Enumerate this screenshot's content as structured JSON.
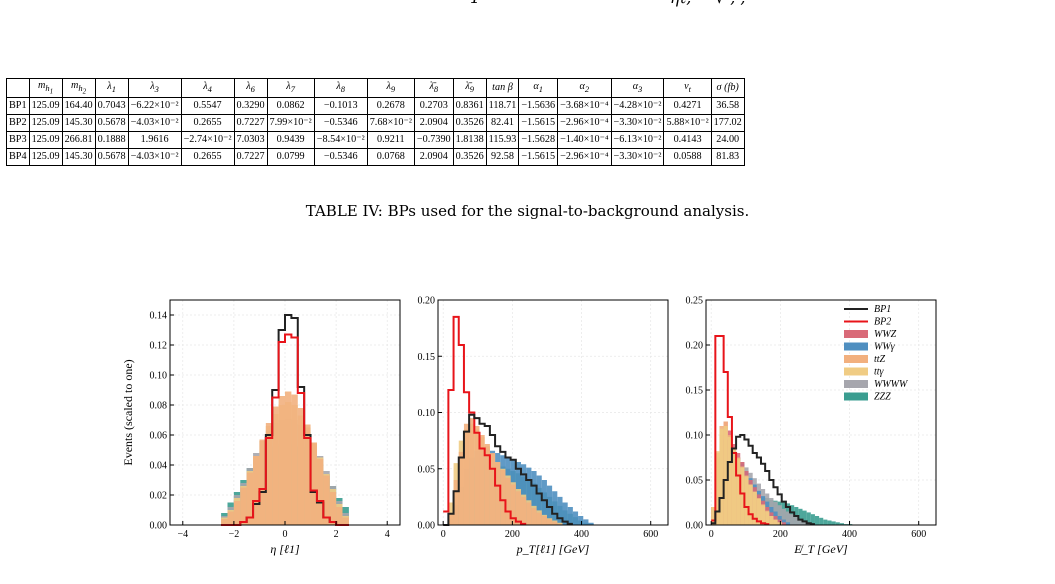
{
  "top_fragment": {
    "left": "1",
    "right": "ηℓ,  = √ , ,"
  },
  "table": {
    "headers": [
      "",
      "m_h1",
      "m_h2",
      "λ1",
      "λ3",
      "λ4",
      "λ6",
      "λ7",
      "λ8",
      "λ9",
      "λ̄8",
      "λ̄9",
      "tan β",
      "α1",
      "α2",
      "α3",
      "v_t",
      "σ (fb)"
    ],
    "header_display": [
      "",
      "m<sub>h<sub>1</sub></sub>",
      "m<sub>h<sub>2</sub></sub>",
      "λ<sub>1</sub>",
      "λ<sub>3</sub>",
      "λ<sub>4</sub>",
      "λ<sub>6</sub>",
      "λ<sub>7</sub>",
      "λ<sub>8</sub>",
      "λ<sub>9</sub>",
      "λ̄<sub>8</sub>",
      "λ̄<sub>9</sub>",
      "tan β",
      "α<sub>1</sub>",
      "α<sub>2</sub>",
      "α<sub>3</sub>",
      "v<sub>t</sub>",
      "σ (fb)"
    ],
    "rows": [
      [
        "BP1",
        "125.09",
        "164.40",
        "0.7043",
        "−6.22×10⁻²",
        "0.5547",
        "0.3290",
        "0.0862",
        "−0.1013",
        "0.2678",
        "0.2703",
        "0.8361",
        "118.71",
        "−1.5636",
        "−3.68×10⁻⁴",
        "−4.28×10⁻²",
        "0.4271",
        "36.58"
      ],
      [
        "BP2",
        "125.09",
        "145.30",
        "0.5678",
        "−4.03×10⁻²",
        "0.2655",
        "0.7227",
        "7.99×10⁻²",
        "−0.5346",
        "7.68×10⁻²",
        "2.0904",
        "0.3526",
        "82.41",
        "−1.5615",
        "−2.96×10⁻⁴",
        "−3.30×10⁻²",
        "5.88×10⁻²",
        "177.02"
      ],
      [
        "BP3",
        "125.09",
        "266.81",
        "0.1888",
        "1.9616",
        "−2.74×10⁻²",
        "7.0303",
        "0.9439",
        "−8.54×10⁻²",
        "0.9211",
        "−0.7390",
        "1.8138",
        "115.93",
        "−1.5628",
        "−1.40×10⁻⁴",
        "−6.13×10⁻²",
        "0.4143",
        "24.00"
      ],
      [
        "BP4",
        "125.09",
        "145.30",
        "0.5678",
        "−4.03×10⁻²",
        "0.2655",
        "0.7227",
        "0.0799",
        "−0.5346",
        "0.0768",
        "2.0904",
        "0.3526",
        "92.58",
        "−1.5615",
        "−2.96×10⁻⁴",
        "−3.30×10⁻²",
        "0.0588",
        "81.83"
      ]
    ]
  },
  "caption": "TABLE IV: BPs used for the signal-to-background analysis.",
  "colors": {
    "BP1": "#222222",
    "BP2": "#e8141a",
    "WWZ": "#d96a78",
    "WWgamma": "#4f8fc0",
    "ttZ": "#f2b07e",
    "ttgamma": "#f0cc84",
    "WWWW": "#a6a6ad",
    "ZZZ": "#3a9d90"
  },
  "chart_data": [
    {
      "type": "bar",
      "xlabel": "η [ℓ1]",
      "ylabel": "Events (scaled to one)",
      "xlim": [
        -4.5,
        4.5
      ],
      "ylim": [
        0,
        0.15
      ],
      "xticks": [
        "−4",
        "−2",
        "0",
        "2",
        "4"
      ],
      "yticks": [
        "0.00",
        "0.02",
        "0.04",
        "0.06",
        "0.08",
        "0.10",
        "0.12",
        "0.14"
      ],
      "bin_edges": [
        -2.5,
        -2.25,
        -2.0,
        -1.75,
        -1.5,
        -1.25,
        -1.0,
        -0.75,
        -0.5,
        -0.25,
        0,
        0.25,
        0.5,
        0.75,
        1.0,
        1.25,
        1.5,
        1.75,
        2.0,
        2.25,
        2.5
      ],
      "series": [
        {
          "name": "BP1",
          "values": [
            0,
            0,
            0,
            0.002,
            0.005,
            0.014,
            0.022,
            0.06,
            0.09,
            0.13,
            0.14,
            0.138,
            0.092,
            0.06,
            0.022,
            0.015,
            0.005,
            0.002,
            0,
            0
          ]
        },
        {
          "name": "BP2",
          "values": [
            0,
            0,
            0,
            0.002,
            0.005,
            0.016,
            0.024,
            0.058,
            0.085,
            0.122,
            0.127,
            0.125,
            0.088,
            0.058,
            0.023,
            0.016,
            0.005,
            0.002,
            0,
            0
          ]
        },
        {
          "name": "ZZZ",
          "values": [
            0.008,
            0.015,
            0.022,
            0.03,
            0.038,
            0.044,
            0.049,
            0.052,
            0.053,
            0.054,
            0.054,
            0.053,
            0.052,
            0.05,
            0.046,
            0.04,
            0.034,
            0.026,
            0.018,
            0.012
          ]
        },
        {
          "name": "WWWW",
          "values": [
            0.006,
            0.012,
            0.02,
            0.028,
            0.038,
            0.048,
            0.056,
            0.063,
            0.068,
            0.07,
            0.071,
            0.07,
            0.067,
            0.062,
            0.054,
            0.046,
            0.036,
            0.026,
            0.016,
            0.008
          ]
        },
        {
          "name": "ttgamma",
          "values": [
            0.005,
            0.01,
            0.018,
            0.026,
            0.036,
            0.046,
            0.056,
            0.066,
            0.074,
            0.08,
            0.082,
            0.08,
            0.073,
            0.065,
            0.055,
            0.045,
            0.034,
            0.024,
            0.014,
            0.006
          ]
        },
        {
          "name": "ttZ",
          "values": [
            0.004,
            0.009,
            0.016,
            0.025,
            0.035,
            0.046,
            0.057,
            0.068,
            0.079,
            0.086,
            0.089,
            0.087,
            0.078,
            0.067,
            0.055,
            0.044,
            0.033,
            0.022,
            0.012,
            0.005
          ]
        }
      ]
    },
    {
      "type": "bar",
      "xlabel": "p_T[ℓ1] [GeV]",
      "xlim": [
        -15,
        650
      ],
      "ylim": [
        0,
        0.2
      ],
      "xticks": [
        "0",
        "200",
        "400",
        "600"
      ],
      "yticks": [
        "0.00",
        "0.05",
        "0.10",
        "0.15",
        "0.20"
      ],
      "bin_width": 15,
      "series": [
        {
          "name": "BP2",
          "start": 0,
          "values": [
            0.012,
            0.12,
            0.185,
            0.16,
            0.118,
            0.1,
            0.082,
            0.068,
            0.062,
            0.05,
            0.035,
            0.022,
            0.012,
            0.006,
            0.003,
            0.001
          ]
        },
        {
          "name": "BP1",
          "start": 0,
          "values": [
            0.0,
            0.01,
            0.03,
            0.06,
            0.083,
            0.098,
            0.095,
            0.09,
            0.088,
            0.08,
            0.07,
            0.065,
            0.06,
            0.058,
            0.05,
            0.045,
            0.04,
            0.035,
            0.028,
            0.022,
            0.016,
            0.01,
            0.006,
            0.003,
            0.001
          ]
        },
        {
          "name": "ZZZ",
          "start": 0,
          "values": [
            0.0,
            0.005,
            0.015,
            0.028,
            0.04,
            0.048,
            0.052,
            0.054,
            0.054,
            0.054,
            0.053,
            0.052,
            0.05,
            0.048,
            0.046,
            0.043,
            0.04,
            0.037,
            0.033,
            0.029,
            0.025,
            0.021,
            0.017,
            0.013,
            0.01,
            0.007,
            0.004,
            0.002,
            0.001
          ]
        },
        {
          "name": "WWgamma",
          "start": 0,
          "values": [
            0.0,
            0.005,
            0.018,
            0.034,
            0.05,
            0.06,
            0.066,
            0.068,
            0.068,
            0.066,
            0.064,
            0.062,
            0.06,
            0.058,
            0.056,
            0.054,
            0.051,
            0.048,
            0.044,
            0.04,
            0.035,
            0.03,
            0.025,
            0.02,
            0.016,
            0.012,
            0.008,
            0.005,
            0.002
          ]
        },
        {
          "name": "ttgamma",
          "start": 0,
          "values": [
            0.0,
            0.02,
            0.055,
            0.075,
            0.085,
            0.09,
            0.085,
            0.078,
            0.07,
            0.063,
            0.056,
            0.05,
            0.044,
            0.038,
            0.032,
            0.027,
            0.022,
            0.017,
            0.013,
            0.009,
            0.006,
            0.004,
            0.002
          ]
        },
        {
          "name": "ttZ",
          "start": 0,
          "values": [
            0.0,
            0.01,
            0.04,
            0.065,
            0.09,
            0.095,
            0.088,
            0.08,
            0.072,
            0.064,
            0.056,
            0.049,
            0.042,
            0.036,
            0.03,
            0.025,
            0.02,
            0.015,
            0.011,
            0.008,
            0.005,
            0.003,
            0.001
          ]
        }
      ]
    },
    {
      "type": "bar",
      "xlabel": "E̸_T [GeV]",
      "xlim": [
        -15,
        650
      ],
      "ylim": [
        0,
        0.25
      ],
      "xticks": [
        "0",
        "200",
        "400",
        "600"
      ],
      "yticks": [
        "0.00",
        "0.05",
        "0.10",
        "0.15",
        "0.20",
        "0.25"
      ],
      "bin_width": 12,
      "legend": [
        "BP1",
        "BP2",
        "WWZ",
        "WWγ",
        "ttZ",
        "ttγ",
        "WWWW",
        "ZZZ"
      ],
      "legend_position": "top-right",
      "series": [
        {
          "name": "BP2",
          "start": 0,
          "values": [
            0.005,
            0.21,
            0.21,
            0.17,
            0.12,
            0.08,
            0.055,
            0.035,
            0.02,
            0.012,
            0.007,
            0.004,
            0.002,
            0.001
          ]
        },
        {
          "name": "BP1",
          "start": 0,
          "values": [
            0.002,
            0.015,
            0.03,
            0.05,
            0.07,
            0.085,
            0.098,
            0.1,
            0.095,
            0.088,
            0.08,
            0.075,
            0.068,
            0.06,
            0.05,
            0.042,
            0.034,
            0.026,
            0.02,
            0.014,
            0.01,
            0.006,
            0.004,
            0.002,
            0.001
          ]
        },
        {
          "name": "ZZZ",
          "start": 0,
          "values": [
            0.02,
            0.05,
            0.06,
            0.062,
            0.06,
            0.057,
            0.054,
            0.05,
            0.046,
            0.042,
            0.038,
            0.035,
            0.032,
            0.03,
            0.028,
            0.027,
            0.026,
            0.025,
            0.024,
            0.022,
            0.02,
            0.018,
            0.016,
            0.014,
            0.012,
            0.01,
            0.008,
            0.006,
            0.005,
            0.004,
            0.003,
            0.002,
            0.001,
            0.001
          ]
        },
        {
          "name": "WWWW",
          "start": 0,
          "values": [
            0.02,
            0.06,
            0.075,
            0.08,
            0.082,
            0.08,
            0.075,
            0.07,
            0.064,
            0.058,
            0.052,
            0.046,
            0.04,
            0.035,
            0.03,
            0.026,
            0.022,
            0.018,
            0.015,
            0.012,
            0.009,
            0.006,
            0.004,
            0.002
          ]
        },
        {
          "name": "WWgamma",
          "start": 0,
          "values": [
            0.02,
            0.07,
            0.09,
            0.095,
            0.09,
            0.082,
            0.075,
            0.068,
            0.06,
            0.052,
            0.045,
            0.038,
            0.032,
            0.026,
            0.02,
            0.015,
            0.01,
            0.006,
            0.003
          ]
        },
        {
          "name": "WWZ",
          "start": 0,
          "values": [
            0.02,
            0.075,
            0.1,
            0.115,
            0.105,
            0.09,
            0.08,
            0.07,
            0.06,
            0.05,
            0.042,
            0.034,
            0.027,
            0.02,
            0.014,
            0.01,
            0.006,
            0.003
          ]
        },
        {
          "name": "ttZ",
          "start": 0,
          "values": [
            0.02,
            0.08,
            0.11,
            0.115,
            0.1,
            0.085,
            0.075,
            0.065,
            0.055,
            0.045,
            0.037,
            0.03,
            0.023,
            0.016,
            0.01,
            0.006,
            0.003
          ]
        },
        {
          "name": "ttgamma",
          "start": 0,
          "values": [
            0.02,
            0.082,
            0.107,
            0.11,
            0.098,
            0.085,
            0.074,
            0.064,
            0.054,
            0.045,
            0.037,
            0.029,
            0.022,
            0.015,
            0.01,
            0.006,
            0.003
          ]
        }
      ]
    }
  ]
}
